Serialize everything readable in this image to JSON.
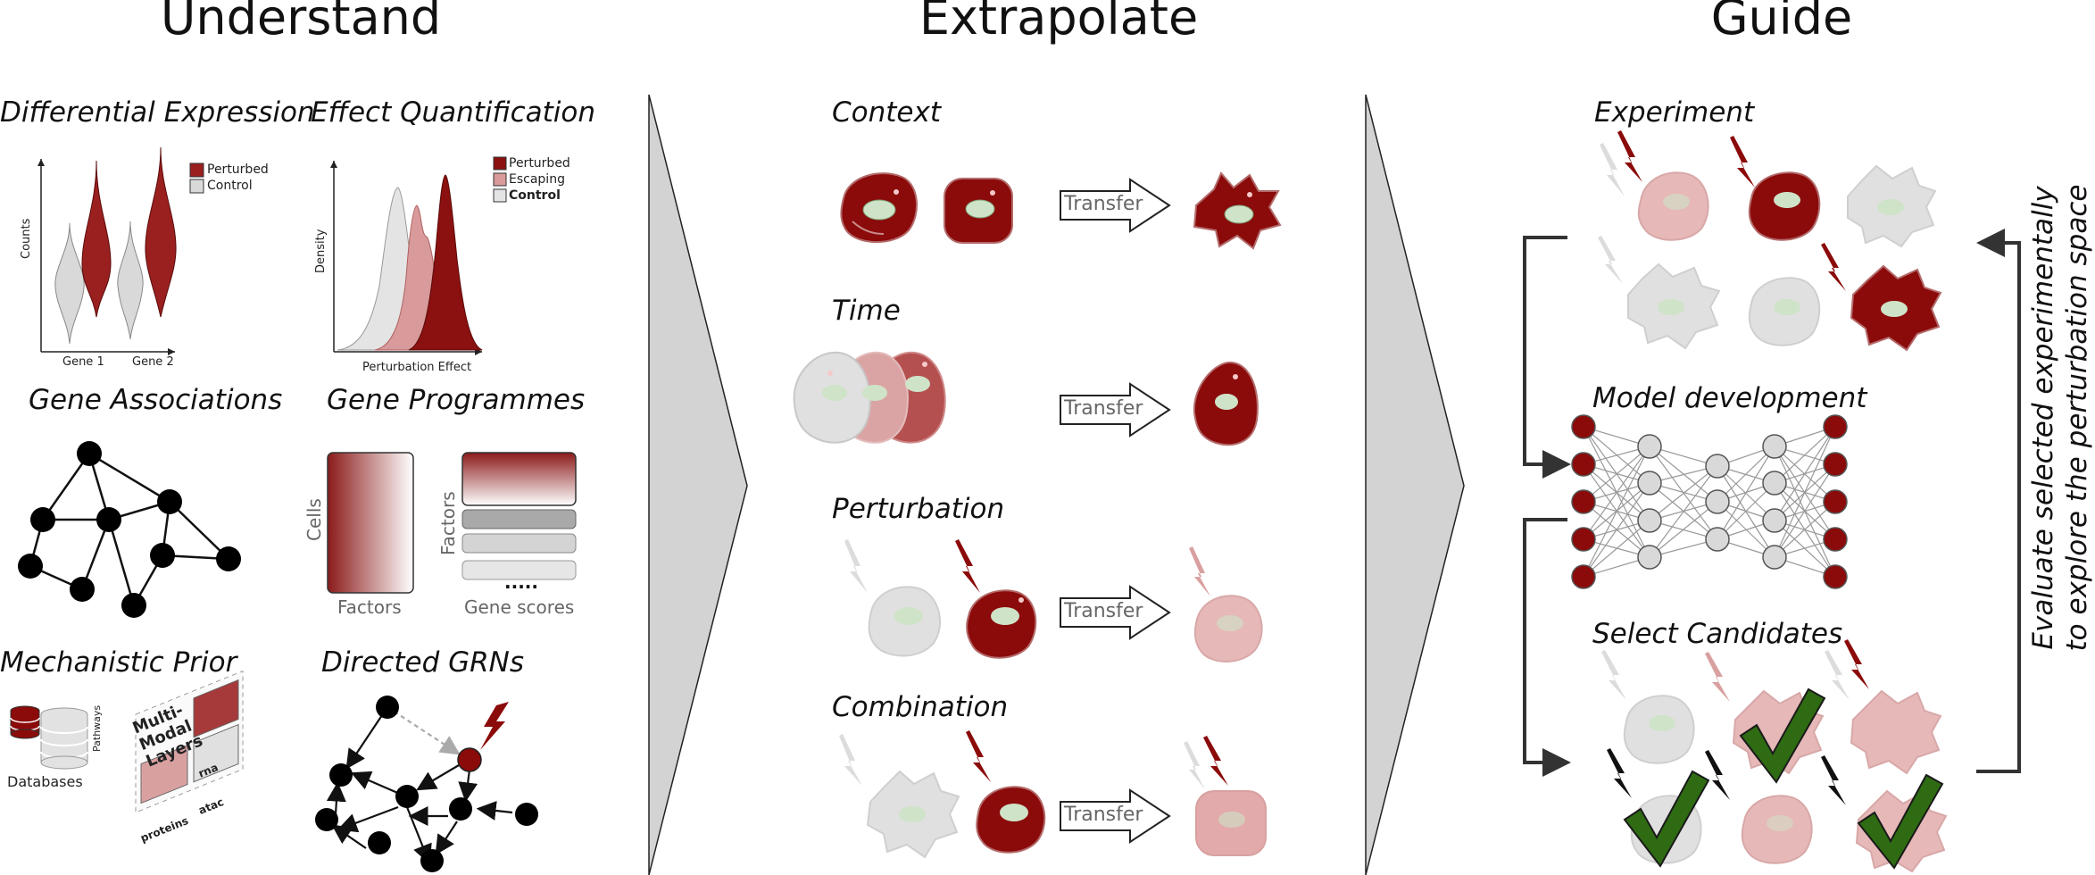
{
  "headers": {
    "understand": "Understand",
    "extrapolate": "Extrapolate",
    "guide": "Guide"
  },
  "understand": {
    "differential_expression": {
      "title": "Differential Expression",
      "ylabel": "Counts",
      "genes": [
        "Gene 1",
        "Gene 2"
      ],
      "legend": [
        "Perturbed",
        "Control"
      ]
    },
    "effect_quantification": {
      "title": "Effect Quantification",
      "ylabel": "Density",
      "xlabel": "Perturbation Effect",
      "legend": [
        "Perturbed",
        "Escaping",
        "Control"
      ]
    },
    "gene_associations": {
      "title": "Gene Associations"
    },
    "gene_programmes": {
      "title": "Gene Programmes",
      "cells_label": "Cells",
      "factors_bottom": "Factors",
      "factors_side": "Factors",
      "gene_scores": "Gene scores",
      "ellipsis": "....."
    },
    "mechanistic_prior": {
      "title": "Mechanistic Prior",
      "databases": "Databases",
      "pathways": "Pathways",
      "layers_title": "Multi-Modal Layers",
      "layers": [
        "rna",
        "proteins",
        "atac"
      ]
    },
    "directed_grns": {
      "title": "Directed GRNs"
    }
  },
  "extrapolate": {
    "rows": [
      {
        "title": "Context",
        "arrow": "Transfer"
      },
      {
        "title": "Time",
        "arrow": "Transfer"
      },
      {
        "title": "Perturbation",
        "arrow": "Transfer"
      },
      {
        "title": "Combination",
        "arrow": "Transfer"
      }
    ]
  },
  "guide": {
    "experiment": "Experiment",
    "model_development": "Model development",
    "select_candidates": "Select Candidates",
    "loop_text_1": "Evaluate selected experimentally",
    "loop_text_2": "to explore the perturbation space"
  },
  "colors": {
    "dark_red": "#8b0a0a",
    "light_red": "#d9a0a0",
    "grey": "#d9d9d9",
    "check_green": "#2e6b12",
    "chevron_grey": "#d3d3d3"
  }
}
